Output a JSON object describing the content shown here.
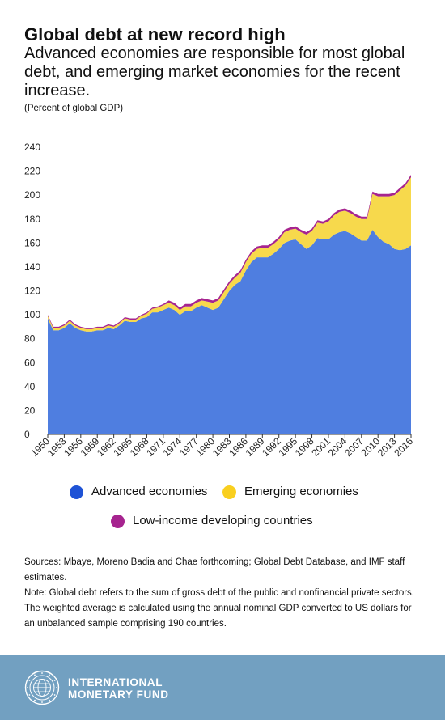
{
  "header": {
    "title": "Global debt at new record high",
    "subtitle": "Advanced economies are responsible for most global debt, and emerging market economies for the recent increase.",
    "unit": "(Percent of global GDP)"
  },
  "legend": {
    "advanced": "Advanced economies",
    "emerging": "Emerging economies",
    "lowincome": "Low-income developing countries"
  },
  "notes": {
    "sources": "Sources: Mbaye, Moreno Badia and Chae forthcoming; Global Debt Database, and IMF staff estimates.",
    "note": "Note: Global debt refers to the sum of gross debt of the public and nonfinancial private sectors. The weighted average is calculated using the annual nominal GDP converted to US dollars for an unbalanced sample comprising 190 countries."
  },
  "footer": {
    "org_line1": "INTERNATIONAL",
    "org_line2": "MONETARY FUND"
  },
  "colors": {
    "advanced": "#4f7ee0",
    "emerging": "#f7d94c",
    "lowincome": "#a6248f",
    "footer": "#72a0c1"
  },
  "chart_data": {
    "type": "area",
    "stacked": true,
    "ylim": [
      0,
      240
    ],
    "yticks": [
      0,
      20,
      40,
      60,
      80,
      100,
      120,
      140,
      160,
      180,
      200,
      220,
      240
    ],
    "xtick_labels": [
      "1950",
      "1953",
      "1956",
      "1959",
      "1962",
      "1965",
      "1968",
      "1971",
      "1974",
      "1977",
      "1980",
      "1983",
      "1986",
      "1989",
      "1992",
      "1995",
      "1998",
      "2001",
      "2004",
      "2007",
      "2010",
      "2013",
      "2016"
    ],
    "grid": false,
    "legend_position": "bottom",
    "x": [
      1950,
      1951,
      1952,
      1953,
      1954,
      1955,
      1956,
      1957,
      1958,
      1959,
      1960,
      1961,
      1962,
      1963,
      1964,
      1965,
      1966,
      1967,
      1968,
      1969,
      1970,
      1971,
      1972,
      1973,
      1974,
      1975,
      1976,
      1977,
      1978,
      1979,
      1980,
      1981,
      1982,
      1983,
      1984,
      1985,
      1986,
      1987,
      1988,
      1989,
      1990,
      1991,
      1992,
      1993,
      1994,
      1995,
      1996,
      1997,
      1998,
      1999,
      2000,
      2001,
      2002,
      2003,
      2004,
      2005,
      2006,
      2007,
      2008,
      2009,
      2010,
      2011,
      2012,
      2013,
      2014,
      2015,
      2016
    ],
    "series": [
      {
        "name": "Advanced economies",
        "values": [
          97,
          87,
          87,
          89,
          93,
          89,
          87,
          86,
          86,
          87,
          87,
          89,
          88,
          91,
          95,
          94,
          94,
          97,
          98,
          102,
          102,
          104,
          106,
          104,
          100,
          103,
          103,
          106,
          108,
          106,
          104,
          106,
          113,
          120,
          125,
          128,
          137,
          144,
          148,
          148,
          148,
          151,
          155,
          160,
          162,
          163,
          159,
          155,
          158,
          164,
          163,
          163,
          167,
          169,
          170,
          168,
          165,
          162,
          162,
          171,
          165,
          161,
          159,
          155,
          154,
          155,
          158
        ]
      },
      {
        "name": "Emerging economies",
        "values": [
          2,
          2,
          2,
          2,
          2,
          2,
          2,
          2,
          2,
          2,
          2,
          2,
          2,
          2,
          2,
          2,
          2,
          2,
          3,
          3,
          4,
          4,
          4,
          4,
          4,
          4,
          4,
          4,
          4,
          5,
          6,
          6,
          6,
          6,
          6,
          7,
          7,
          7,
          7,
          8,
          8,
          8,
          8,
          9,
          9,
          9,
          10,
          12,
          12,
          13,
          13,
          15,
          16,
          17,
          17,
          17,
          17,
          18,
          18,
          30,
          34,
          38,
          40,
          45,
          50,
          53,
          57
        ]
      },
      {
        "name": "Low-income developing countries",
        "values": [
          1,
          1,
          1,
          1,
          1,
          1,
          1,
          1,
          1,
          1,
          1,
          1,
          1,
          1,
          1,
          1,
          1,
          1,
          1,
          1,
          1,
          1,
          2,
          2,
          2,
          2,
          2,
          2,
          2,
          2,
          2,
          2,
          2,
          2,
          2,
          2,
          2,
          2,
          2,
          2,
          2,
          2,
          2,
          2,
          2,
          2,
          2,
          2,
          2,
          2,
          2,
          2,
          2,
          2,
          2,
          2,
          2,
          2,
          2,
          2,
          2,
          2,
          2,
          2,
          2,
          2,
          2
        ]
      }
    ]
  }
}
